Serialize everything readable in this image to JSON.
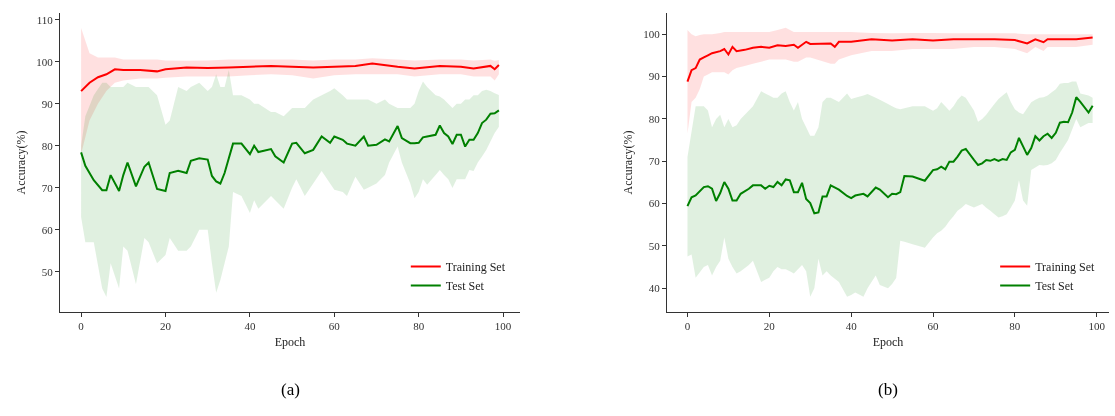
{
  "chart_data": [
    {
      "type": "line",
      "xlabel": "Epoch",
      "ylabel": "Accuracy(%)",
      "annotations": [
        "(a)"
      ],
      "xlim": [
        -5,
        104
      ],
      "ylim": [
        40.4,
        111.6
      ],
      "xticks": [
        0,
        20,
        40,
        60,
        80,
        100
      ],
      "yticks": [
        50,
        60,
        70,
        80,
        90,
        100,
        110
      ],
      "legend": "bottom right",
      "series": [
        {
          "name": "Training Set",
          "color": "#ff0000",
          "x": [
            0,
            2,
            4,
            6,
            8,
            10,
            14,
            18,
            20,
            25,
            30,
            35,
            40,
            45,
            50,
            55,
            60,
            65,
            69,
            75,
            79,
            85,
            90,
            93,
            97,
            98,
            99
          ],
          "values": [
            93,
            95,
            96.3,
            97,
            98.2,
            98,
            98,
            97.7,
            98.2,
            98.6,
            98.5,
            98.6,
            98.8,
            99,
            98.8,
            98.6,
            98.8,
            99,
            99.6,
            98.8,
            98.4,
            99,
            98.8,
            98.4,
            99,
            98.2,
            99.2
          ],
          "upper": [
            108,
            102,
            101,
            101,
            101,
            100.5,
            100.5,
            100.5,
            100.3,
            100.2,
            100.3,
            100.5,
            100.5,
            100.5,
            100.5,
            100.3,
            100.5,
            100.5,
            100.8,
            100.5,
            100.3,
            100.5,
            100.5,
            100.3,
            100.5,
            100.2,
            100.4
          ],
          "lower": [
            78,
            86,
            90,
            93,
            95,
            95.5,
            96,
            96,
            96.2,
            96.5,
            96.5,
            96.5,
            96.8,
            97,
            96.8,
            96,
            96.8,
            97,
            97,
            97,
            96.5,
            97,
            97,
            96.5,
            96.5,
            95.5,
            97
          ]
        },
        {
          "name": "Test Set",
          "color": "#008000",
          "x": [
            0,
            1,
            3,
            5,
            6,
            7,
            9,
            10,
            11,
            13,
            15,
            16,
            18,
            20,
            21,
            23,
            25,
            26,
            28,
            30,
            31,
            32,
            33,
            34,
            35,
            36,
            38,
            40,
            41,
            42,
            45,
            46,
            48,
            50,
            51,
            53,
            55,
            57,
            59,
            60,
            62,
            63,
            65,
            67,
            68,
            70,
            72,
            73,
            75,
            76,
            78,
            79,
            80,
            81,
            82,
            84,
            85,
            86,
            87,
            88,
            89,
            90,
            91,
            92,
            93,
            94,
            95,
            96,
            97,
            98,
            99
          ],
          "values": [
            78.4,
            75.2,
            71.8,
            69.4,
            69.4,
            73,
            69.2,
            73,
            76,
            70.3,
            75,
            76,
            69.7,
            69.2,
            73.5,
            74,
            73.5,
            76.4,
            77,
            76.7,
            72.8,
            71.5,
            71,
            73.5,
            77,
            80.5,
            80.5,
            78,
            80,
            78.5,
            79.2,
            77.5,
            76,
            80.5,
            80.7,
            78.2,
            79,
            82.2,
            80.7,
            82.2,
            81.4,
            80.5,
            80,
            82.2,
            80,
            80.2,
            81.5,
            81,
            84.7,
            81.8,
            80.6,
            80.6,
            80.7,
            82,
            82.2,
            82.6,
            84.8,
            83,
            82.2,
            80.4,
            82.6,
            82.6,
            79.8,
            81.4,
            81.4,
            83,
            85.4,
            86.2,
            87.6,
            87.7,
            88.4
          ],
          "upper": [
            80,
            87,
            92,
            95,
            95,
            94,
            94,
            94,
            95,
            94,
            94,
            94,
            92,
            85,
            86,
            94,
            93,
            94,
            95,
            93,
            94,
            97,
            94,
            94,
            98,
            92,
            92,
            91,
            90,
            90,
            88,
            88,
            87,
            89,
            89,
            89,
            91,
            92,
            93,
            93.7,
            92,
            91,
            91,
            91,
            91,
            90,
            91,
            90,
            89,
            89,
            89,
            90,
            93,
            95.3,
            94,
            92,
            91.7,
            91,
            90,
            89,
            90,
            90,
            91,
            91,
            92,
            92,
            93,
            93.3,
            93,
            92.5,
            92.1
          ],
          "lower": [
            63,
            57,
            57,
            46,
            44,
            52,
            46,
            56,
            55,
            47,
            58,
            57,
            52,
            54,
            58,
            55,
            55,
            56,
            60,
            60,
            52,
            45,
            48,
            52,
            56,
            69,
            68,
            64,
            67,
            65,
            68,
            67,
            65,
            70,
            72,
            68,
            71,
            74,
            71,
            69.5,
            69,
            68,
            72.6,
            69.5,
            70,
            71,
            73,
            76,
            79.8,
            76,
            71,
            67.5,
            69,
            72,
            70.7,
            73,
            74.2,
            73,
            72,
            69.9,
            72,
            72,
            72,
            74.2,
            74,
            76,
            77.4,
            79,
            81,
            83,
            84.5
          ]
        }
      ]
    },
    {
      "type": "line",
      "xlabel": "Epoch",
      "ylabel": "Accuracy(%)",
      "annotations": [
        "(b)"
      ],
      "xlim": [
        -5,
        103
      ],
      "ylim": [
        34.4,
        105
      ],
      "xticks": [
        0,
        20,
        40,
        60,
        80,
        100
      ],
      "yticks": [
        40,
        50,
        60,
        70,
        80,
        90,
        100
      ],
      "legend": "bottom right",
      "series": [
        {
          "name": "Training Set",
          "color": "#ff0000",
          "x": [
            0,
            1,
            2,
            3,
            4,
            5,
            6,
            8,
            9,
            10,
            11,
            12,
            14,
            16,
            18,
            20,
            22,
            24,
            26,
            27,
            29,
            30,
            35,
            36,
            37,
            40,
            45,
            50,
            55,
            60,
            65,
            70,
            75,
            80,
            83,
            85,
            87,
            88,
            95,
            99
          ],
          "values": [
            88.8,
            91.5,
            92,
            94,
            94.5,
            95,
            95.5,
            96,
            96.5,
            95.2,
            97,
            96,
            96.3,
            96.8,
            97,
            96.8,
            97.4,
            97.2,
            97.5,
            96.8,
            98.2,
            97.7,
            97.8,
            97,
            98.2,
            98.2,
            98.8,
            98.5,
            98.8,
            98.5,
            98.8,
            98.8,
            98.8,
            98.6,
            97.8,
            98.8,
            98.1,
            98.8,
            98.8,
            99.2
          ],
          "upper": [
            101,
            100,
            99.5,
            99.8,
            100,
            100,
            100,
            100.3,
            100.5,
            100.5,
            100.5,
            100.5,
            100.5,
            100.5,
            100.5,
            100.5,
            101,
            101.5,
            100.5,
            100.5,
            100.5,
            100.5,
            100.5,
            100.5,
            100.5,
            100.5,
            100.3,
            100.2,
            100.3,
            100.3,
            100.2,
            100.2,
            100.2,
            100.2,
            100,
            100,
            100,
            100,
            100,
            100
          ],
          "lower": [
            76.5,
            84,
            85,
            87,
            90,
            90.5,
            91,
            91,
            91,
            90.5,
            91.5,
            92,
            92.5,
            93,
            93.5,
            94,
            94,
            94,
            93.5,
            93.5,
            94.5,
            94.5,
            93,
            93,
            94,
            95,
            96,
            96,
            96.5,
            96.5,
            96.5,
            97,
            97,
            96.5,
            95.5,
            97,
            96,
            97,
            97,
            97.5
          ]
        },
        {
          "name": "Test Set",
          "color": "#008000",
          "x": [
            0,
            1,
            2,
            4,
            5,
            6,
            7,
            8,
            9,
            10,
            11,
            12,
            13,
            15,
            16,
            18,
            19,
            20,
            21,
            22,
            23,
            24,
            25,
            26,
            27,
            28,
            29,
            30,
            31,
            32,
            33,
            34,
            35,
            37,
            39,
            40,
            41,
            43,
            44,
            46,
            47,
            49,
            50,
            51,
            52,
            53,
            55,
            58,
            60,
            61,
            62,
            63,
            64,
            65,
            66,
            67,
            68,
            70,
            71,
            72,
            73,
            74,
            75,
            76,
            77,
            78,
            79,
            80,
            81,
            82,
            83,
            84,
            85,
            86,
            87,
            88,
            89,
            90,
            91,
            92,
            93,
            94,
            95,
            96,
            98,
            99
          ],
          "values": [
            59.4,
            61.5,
            61.9,
            63.9,
            64.1,
            63.5,
            60.6,
            62.5,
            65.1,
            63.5,
            60.7,
            60.7,
            62.3,
            63.5,
            64.3,
            64.3,
            63.5,
            64.2,
            63.9,
            65.1,
            64.3,
            65.7,
            65.5,
            62.7,
            62.7,
            64.9,
            61.1,
            60.1,
            57.7,
            57.9,
            61.7,
            61.7,
            64.3,
            63.3,
            61.8,
            61.3,
            61.9,
            62.3,
            61.7,
            63.8,
            63.3,
            61.5,
            62.3,
            62.2,
            62.7,
            66.5,
            66.4,
            65.4,
            67.9,
            68.1,
            68.7,
            68.1,
            69.9,
            69.9,
            71.1,
            72.5,
            72.9,
            70.3,
            69.1,
            69.5,
            70.3,
            70.1,
            70.5,
            70.1,
            70.5,
            70.3,
            72.1,
            72.7,
            75.5,
            73.5,
            71.5,
            73.1,
            75.9,
            74.9,
            75.9,
            76.5,
            75.5,
            76.7,
            79.1,
            79.3,
            79.2,
            81.5,
            85.1,
            84,
            81.5,
            83.1
          ],
          "upper": [
            71,
            77,
            83,
            83,
            82,
            78,
            80,
            81,
            78,
            80,
            78,
            78.5,
            80,
            82,
            83,
            86.5,
            86,
            85.5,
            85,
            85,
            86,
            86.5,
            84,
            82,
            84,
            80,
            78,
            76,
            76,
            78,
            84,
            85,
            85,
            84,
            86,
            84.7,
            85,
            85.5,
            85.9,
            85,
            84.5,
            83.5,
            83,
            82.5,
            82.3,
            82.5,
            83,
            83,
            81.9,
            82.5,
            84,
            83,
            81.9,
            83,
            84.5,
            85.5,
            85,
            82,
            79.3,
            80,
            81,
            82.3,
            83.5,
            84.7,
            85.5,
            86.3,
            84,
            82.3,
            81.5,
            81.1,
            82.5,
            83.9,
            84.5,
            85,
            85.1,
            85.5,
            86.3,
            87,
            88.3,
            88.5,
            88.5,
            88.8,
            88.8,
            86,
            85.5,
            85
          ],
          "lower": [
            47.5,
            48,
            42.5,
            45,
            45.5,
            43,
            45,
            46.5,
            52,
            47,
            45,
            43.5,
            44,
            45.5,
            46.5,
            41.5,
            42,
            42.5,
            44,
            45,
            44.5,
            44.5,
            44,
            43.5,
            44.5,
            45.5,
            44,
            38,
            40,
            47,
            43,
            44,
            43,
            41.5,
            38,
            38.4,
            39,
            38,
            40,
            43,
            40.8,
            40,
            41,
            42.4,
            51.2,
            51,
            50.4,
            49.6,
            52,
            53,
            53.6,
            54.5,
            55.9,
            57,
            58.3,
            59,
            59.9,
            59.1,
            59.5,
            59.9,
            59,
            58.3,
            57.5,
            56.7,
            57,
            57.5,
            59,
            60.7,
            65.5,
            60.7,
            59.5,
            67.9,
            68.5,
            69.1,
            69,
            69.1,
            69.5,
            70.3,
            72,
            73.5,
            75,
            77.5,
            80,
            78,
            79,
            79
          ]
        }
      ]
    }
  ]
}
